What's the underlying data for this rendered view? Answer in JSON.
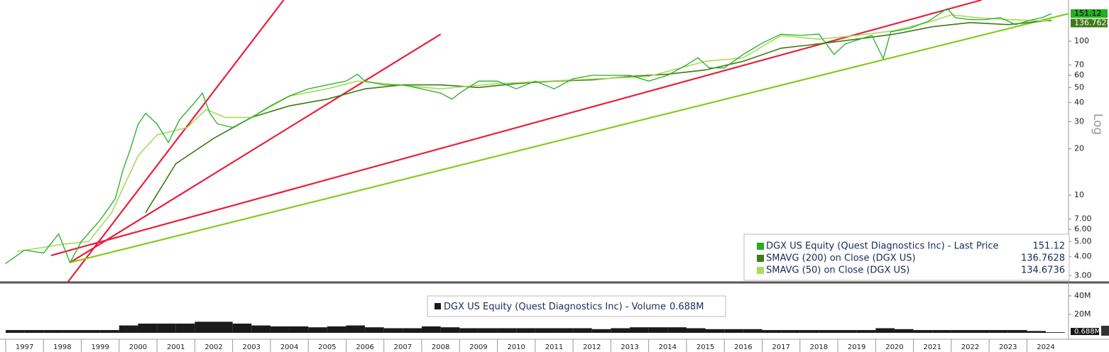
{
  "chart_data": [
    {
      "type": "line",
      "log": true,
      "ylabel": "Log",
      "legend": "bottom-right",
      "xlim": [
        1996.85,
        2025.1
      ],
      "ylim": [
        2.74,
        185
      ],
      "yticks": [
        {
          "value": 3,
          "label": "3.00"
        },
        {
          "value": 4,
          "label": "4.00"
        },
        {
          "value": 5,
          "label": "5.00"
        },
        {
          "value": 6,
          "label": "6.00"
        },
        {
          "value": 7,
          "label": "7.00"
        },
        10,
        20,
        30,
        40,
        50,
        60,
        70,
        100
      ],
      "series": [
        {
          "name": "DGX US Equity (Quest Diagnostics Inc) - Last Price",
          "color": "#22b022",
          "x": [
            1997.0,
            1997.5,
            1998.0,
            1998.4,
            1998.7,
            1999.0,
            1999.5,
            1999.9,
            2000.1,
            2000.3,
            2000.5,
            2000.7,
            2001.0,
            2001.3,
            2001.6,
            2002.0,
            2002.2,
            2002.4,
            2002.6,
            2003.0,
            2003.5,
            2004.0,
            2004.5,
            2005.0,
            2005.5,
            2006.0,
            2006.3,
            2006.5,
            2007.0,
            2007.5,
            2008.0,
            2008.5,
            2008.8,
            2009.0,
            2009.5,
            2010.0,
            2010.5,
            2011.0,
            2011.5,
            2012.0,
            2012.5,
            2013.0,
            2013.5,
            2014.0,
            2014.5,
            2015.0,
            2015.3,
            2015.6,
            2016.0,
            2016.5,
            2017.0,
            2017.5,
            2018.0,
            2018.5,
            2018.9,
            2019.2,
            2019.9,
            2020.2,
            2020.4,
            2020.9,
            2021.4,
            2021.9,
            2022.1,
            2022.5,
            2022.9,
            2023.3,
            2023.7,
            2024.0,
            2024.4,
            2024.65
          ],
          "values": [
            3.6,
            4.4,
            4.2,
            5.6,
            3.65,
            5.0,
            6.9,
            9.5,
            14.5,
            20,
            28.9,
            34,
            29,
            22,
            31,
            40,
            46,
            34,
            29,
            27.5,
            32,
            38,
            44,
            49,
            52,
            55,
            61,
            55,
            52,
            52,
            49,
            46,
            42,
            46,
            55,
            55,
            49,
            55,
            49,
            57,
            60,
            60,
            60,
            55,
            60,
            70,
            78,
            67,
            67,
            82,
            97,
            111,
            109,
            111,
            82,
            96,
            109,
            77,
            115,
            121,
            135,
            163,
            142,
            138,
            138,
            142,
            128,
            135,
            142,
            151.12
          ]
        },
        {
          "name": "SMAVG (200)  on Close (DGX US)",
          "color": "#3f7a14",
          "x": [
            2000.7,
            2001.5,
            2002.5,
            2003.5,
            2004.5,
            2005.5,
            2006.5,
            2007.5,
            2008.5,
            2009.5,
            2010.5,
            2011.5,
            2012.5,
            2013.5,
            2014.5,
            2015.5,
            2016.5,
            2017.5,
            2018.5,
            2019.5,
            2020.5,
            2021.5,
            2022.5,
            2023.5,
            2024.65
          ],
          "values": [
            7.7,
            16,
            23.4,
            32,
            38,
            42,
            49,
            52,
            52,
            50,
            53,
            55,
            56,
            59,
            61,
            65,
            74,
            90,
            96,
            103,
            111,
            124,
            132,
            128,
            136.7628
          ]
        },
        {
          "name": "SMAVG (50)  on Close (DGX US)",
          "color": "#a6dc5a",
          "x": [
            1997.3,
            1998.5,
            1999.2,
            1999.8,
            2000.5,
            2001.0,
            2001.8,
            2002.3,
            2002.8,
            2003.5,
            2004.5,
            2005.5,
            2006.3,
            2007.0,
            2008.5,
            2010.0,
            2012.0,
            2014.0,
            2015.5,
            2016.5,
            2017.5,
            2018.5,
            2019.5,
            2020.5,
            2021.5,
            2022.0,
            2022.7,
            2023.5,
            2024.65
          ],
          "values": [
            4.3,
            4.8,
            5,
            7.7,
            18,
            24.6,
            27.5,
            36,
            32,
            32,
            44,
            49,
            55,
            53,
            49,
            53,
            56,
            59,
            74,
            78,
            109,
            103,
            109,
            117,
            135,
            148,
            142,
            138,
            134.6736
          ]
        }
      ],
      "trendlines": [
        {
          "color": "#e8203a",
          "x": [
            1998.65,
            2004.35
          ],
          "values": [
            2.74,
            185
          ]
        },
        {
          "color": "#e8203a",
          "x": [
            1998.7,
            2008.5
          ],
          "values": [
            3.65,
            111
          ]
        },
        {
          "color": "#e8203a",
          "x": [
            1998.2,
            2022.8
          ],
          "values": [
            4.06,
            185
          ]
        },
        {
          "color": "#84cc1e",
          "x": [
            1998.7,
            2025.1
          ],
          "values": [
            3.65,
            151
          ]
        }
      ]
    },
    {
      "type": "bar",
      "legend": "top",
      "name": "DGX US Equity (Quest Diagnostics Inc) - Volume",
      "last_label": "0.688M",
      "color": "#1a1a1a",
      "xlim": [
        1996.85,
        2025.1
      ],
      "ylim": [
        0,
        53
      ],
      "yticks": [
        {
          "value": 20,
          "label": "20M"
        },
        {
          "value": 40,
          "label": "40M"
        }
      ],
      "xticks": [
        1997,
        1998,
        1999,
        2000,
        2001,
        2002,
        2003,
        2004,
        2005,
        2006,
        2007,
        2008,
        2009,
        2010,
        2011,
        2012,
        2013,
        2014,
        2015,
        2016,
        2017,
        2018,
        2019,
        2020,
        2021,
        2022,
        2023,
        2024
      ],
      "x": [
        1997.0,
        1997.5,
        1998.0,
        1998.5,
        1999.0,
        1999.5,
        2000.0,
        2000.5,
        2001.0,
        2001.5,
        2002.0,
        2002.5,
        2003.0,
        2003.5,
        2004.0,
        2004.5,
        2005.0,
        2005.5,
        2006.0,
        2006.5,
        2007.0,
        2007.5,
        2008.0,
        2008.5,
        2009.0,
        2009.5,
        2010.0,
        2010.5,
        2011.0,
        2011.5,
        2012.0,
        2012.5,
        2013.0,
        2013.5,
        2014.0,
        2014.5,
        2015.0,
        2015.5,
        2016.0,
        2016.5,
        2017.0,
        2017.5,
        2018.0,
        2018.5,
        2019.0,
        2019.5,
        2020.0,
        2020.5,
        2021.0,
        2021.5,
        2022.0,
        2022.5,
        2023.0,
        2023.5,
        2024.0,
        2024.5
      ],
      "values": [
        3,
        3,
        3,
        3,
        3,
        3,
        8,
        10,
        10,
        10,
        12,
        12,
        10,
        8,
        7,
        7,
        6,
        7,
        8,
        6,
        5,
        5,
        7,
        6,
        5,
        5,
        5,
        5,
        5,
        5,
        5,
        4,
        5,
        6,
        6,
        6,
        5,
        4,
        4,
        4,
        3,
        3,
        3,
        3,
        3,
        3,
        5,
        4,
        3,
        3,
        3,
        3,
        3,
        3,
        2,
        0.688
      ]
    }
  ]
}
